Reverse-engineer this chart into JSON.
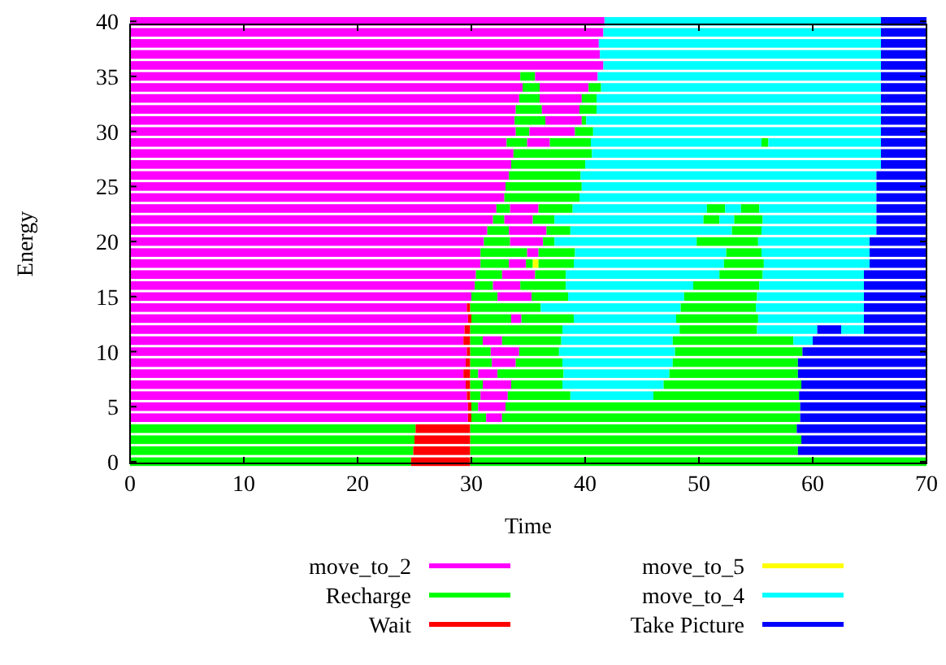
{
  "chart_data": {
    "type": "bar",
    "orientation": "horizontal",
    "stacked": true,
    "xlabel": "Time",
    "ylabel": "Energy",
    "xlim": [
      0,
      70
    ],
    "xticks": [
      0,
      10,
      20,
      30,
      40,
      50,
      60,
      70
    ],
    "legend": "bottom",
    "grid": false,
    "categories": [
      "40",
      null,
      null,
      null,
      null,
      "35",
      null,
      null,
      null,
      null,
      "30",
      null,
      null,
      null,
      null,
      "25",
      null,
      null,
      null,
      null,
      "20",
      null,
      null,
      null,
      null,
      "15",
      null,
      null,
      null,
      null,
      "10",
      null,
      null,
      null,
      null,
      "5",
      null,
      null,
      null,
      null,
      "0"
    ],
    "series": [
      {
        "name": "move_to_2",
        "color": "#ff00ff",
        "values": [
          41.7,
          41.6,
          41.2,
          41.3,
          41.6,
          34.3,
          34.5,
          34.2,
          33.9,
          33.8,
          33.9,
          33.1,
          33.7,
          33.5,
          33.3,
          33.0,
          32.9,
          32.2,
          31.9,
          31.4,
          31.1,
          30.8,
          30.8,
          30.4,
          30.3,
          30.0,
          29.6,
          29.7,
          29.4,
          29.3,
          29.6,
          29.5,
          29.3,
          29.5,
          29.6,
          29.7,
          29.7,
          0,
          0,
          0,
          0
        ]
      },
      {
        "name": "Recharge",
        "color": "#00ff00",
        "values": [
          0,
          0,
          0,
          0,
          0,
          0,
          0,
          0,
          0,
          0,
          0,
          0,
          0,
          0,
          0,
          0,
          0,
          0,
          0,
          0,
          0,
          0,
          0,
          0,
          0,
          0,
          0,
          0,
          0,
          0,
          0,
          0,
          0,
          0,
          0,
          0,
          0,
          25.1,
          25.0,
          24.9,
          24.7
        ]
      },
      {
        "name": "Wait",
        "color": "#ff0000",
        "values": [
          0,
          0,
          0,
          0,
          0,
          0,
          0,
          0,
          0,
          0,
          0,
          0,
          0,
          0,
          0,
          0,
          0,
          0,
          0,
          0,
          0,
          0,
          0,
          0,
          0,
          0,
          0.3,
          0.3,
          0.5,
          0.6,
          0.3,
          0.4,
          0.6,
          0.4,
          0.3,
          0.3,
          0.3,
          4.8,
          4.9,
          5.0,
          5.2
        ]
      },
      {
        "color": "#00ff00",
        "values": [
          0,
          0,
          0,
          0,
          0,
          1.3,
          1.5,
          1.8,
          2.3,
          2.7,
          1.2,
          1.8,
          6.9,
          6.5,
          6.3,
          6.7,
          6.6,
          1.2,
          1.0,
          1.9,
          2.3,
          4.1,
          2.5,
          2.3,
          1.6,
          2.3,
          6.2,
          3.5,
          8.1,
          1.1,
          1.8,
          1.9,
          0.7,
          1.1,
          0.9,
          0.6,
          1.3,
          28.7,
          29.1,
          28.8,
          40.1
        ]
      },
      {
        "color": "#ff00ff",
        "values": [
          0,
          0,
          0,
          0,
          0,
          5.5,
          4.3,
          3.7,
          3.3,
          3.2,
          4.0,
          2.0,
          0,
          0,
          0,
          0,
          0,
          2.5,
          2.5,
          3.3,
          2.9,
          1.0,
          1.5,
          2.9,
          2.4,
          3.0,
          0,
          0.9,
          0,
          1.7,
          2.5,
          2.1,
          1.7,
          2.5,
          2.4,
          2.4,
          1.4,
          0,
          0,
          0,
          0
        ]
      },
      {
        "color": "#00ff00",
        "values": [
          0,
          0,
          0,
          0,
          0,
          0,
          1.1,
          1.3,
          1.5,
          0.4,
          1.6,
          3.6,
          0,
          0,
          0,
          0,
          0,
          3.0,
          1.9,
          2.1,
          1.0,
          3.2,
          0.6,
          2.7,
          4.0,
          3.2,
          0,
          4.6,
          0,
          5.2,
          3.5,
          4.1,
          5.8,
          4.5,
          5.5,
          25.9,
          26.2,
          0,
          0,
          0,
          0
        ]
      },
      {
        "name": "move_to_5",
        "color": "#ffff00",
        "values": [
          0,
          0,
          0,
          0,
          0,
          0,
          0,
          0,
          0,
          0,
          0,
          0,
          0,
          0,
          0,
          0,
          0,
          0,
          0,
          0,
          0,
          0,
          0.5,
          0,
          0,
          0,
          0,
          0,
          0,
          0,
          0,
          0,
          0,
          0,
          0,
          0,
          0,
          0,
          0,
          0,
          0
        ]
      },
      {
        "color": "#00ff00",
        "values": [
          0,
          0,
          0,
          0,
          0,
          0,
          0,
          0,
          0,
          0,
          0,
          0,
          0,
          0,
          0,
          0,
          0,
          0,
          0,
          0,
          0,
          0,
          3.1,
          0,
          0,
          0,
          0,
          0,
          0,
          0,
          0,
          0,
          0,
          0,
          0,
          0,
          0,
          0,
          0,
          0,
          0
        ]
      },
      {
        "name": "move_to_4",
        "color": "#00ffff",
        "values": [
          0,
          0,
          0,
          0,
          0,
          0,
          0,
          0,
          0,
          0,
          0,
          15.0,
          0,
          0,
          0,
          0,
          0,
          11.8,
          13.1,
          14.2,
          12.5,
          13.3,
          13.2,
          13.5,
          11.2,
          10.2,
          12.3,
          9.0,
          10.3,
          9.8,
          10.2,
          9.7,
          9.3,
          8.9,
          7.3,
          0,
          0,
          0,
          0,
          0,
          0
        ]
      },
      {
        "color": "#00ff00",
        "values": [
          0,
          0,
          0,
          0,
          0,
          0,
          0,
          0,
          0,
          0,
          0,
          0.6,
          0,
          0,
          0,
          0,
          0,
          1.6,
          1.4,
          2.6,
          5.4,
          3.1,
          3.5,
          3.8,
          5.8,
          6.4,
          6.6,
          7.2,
          6.8,
          10.6,
          11.2,
          11.0,
          11.3,
          12.1,
          12.8,
          0,
          0,
          0,
          0,
          0,
          0
        ]
      },
      {
        "color": "#00ffff",
        "values": [
          0,
          0,
          0,
          0,
          0,
          0,
          0,
          0,
          0,
          0,
          0,
          0,
          0,
          0,
          0,
          0,
          0,
          1.4,
          1.3,
          0,
          0,
          0,
          0,
          0,
          0,
          0,
          0,
          0,
          0,
          0,
          0,
          0,
          0,
          0,
          0,
          0,
          0,
          0,
          0,
          0,
          0
        ]
      },
      {
        "color": "#00ff00",
        "values": [
          0,
          0,
          0,
          0,
          0,
          0,
          0,
          0,
          0,
          0,
          0,
          0,
          0,
          0,
          0,
          0,
          0,
          1.6,
          2.5,
          0,
          0,
          0,
          0,
          0,
          0,
          0,
          0,
          0,
          0,
          0,
          0,
          0,
          0,
          0,
          0,
          0,
          0,
          0,
          0,
          0,
          0
        ]
      },
      {
        "color": "#00ffff",
        "values": [
          0,
          0,
          0,
          0,
          0,
          0,
          0,
          0,
          0,
          0,
          0,
          0,
          0,
          0,
          0,
          0,
          0,
          0,
          0,
          0,
          0,
          0,
          0,
          0,
          0,
          0,
          0,
          0,
          5.3,
          0,
          0,
          0,
          0,
          0,
          0,
          0,
          0,
          0,
          0,
          0,
          0
        ]
      },
      {
        "color": "#0000ff",
        "values": [
          0,
          0,
          0,
          0,
          0,
          0,
          0,
          0,
          0,
          0,
          0,
          0,
          0,
          0,
          0,
          0,
          0,
          0,
          0,
          0,
          0,
          0,
          0,
          0,
          0,
          0,
          0,
          0,
          2.1,
          0,
          0,
          0,
          0,
          0,
          0,
          0,
          0,
          0,
          0,
          0,
          0
        ]
      },
      {
        "color": "#00ffff",
        "values": [
          24.3,
          24.4,
          24.8,
          24.7,
          24.4,
          24.9,
          24.6,
          25.0,
          25.0,
          25.9,
          25.3,
          9.9,
          25.4,
          26.0,
          26.0,
          25.9,
          26.1,
          10.3,
          10.0,
          10.1,
          9.8,
          9.5,
          9.3,
          8.9,
          9.2,
          9.4,
          9.5,
          9.3,
          2.0,
          1.7,
          0,
          0,
          0,
          0,
          0,
          0,
          0,
          0,
          0,
          0,
          0
        ]
      },
      {
        "name": "Take Picture",
        "color": "#0000ff",
        "values": [
          4.0,
          4.0,
          4.0,
          4.0,
          4.0,
          4.0,
          4.0,
          4.0,
          4.0,
          4.0,
          4.0,
          4.0,
          4.0,
          4.0,
          4.4,
          4.4,
          4.4,
          4.4,
          4.4,
          4.4,
          5.0,
          5.0,
          5.0,
          5.5,
          5.5,
          5.5,
          5.5,
          5.5,
          5.5,
          10.0,
          10.9,
          11.3,
          11.3,
          11.0,
          11.2,
          11.1,
          11.1,
          11.4,
          11.0,
          11.3,
          0
        ]
      }
    ]
  }
}
